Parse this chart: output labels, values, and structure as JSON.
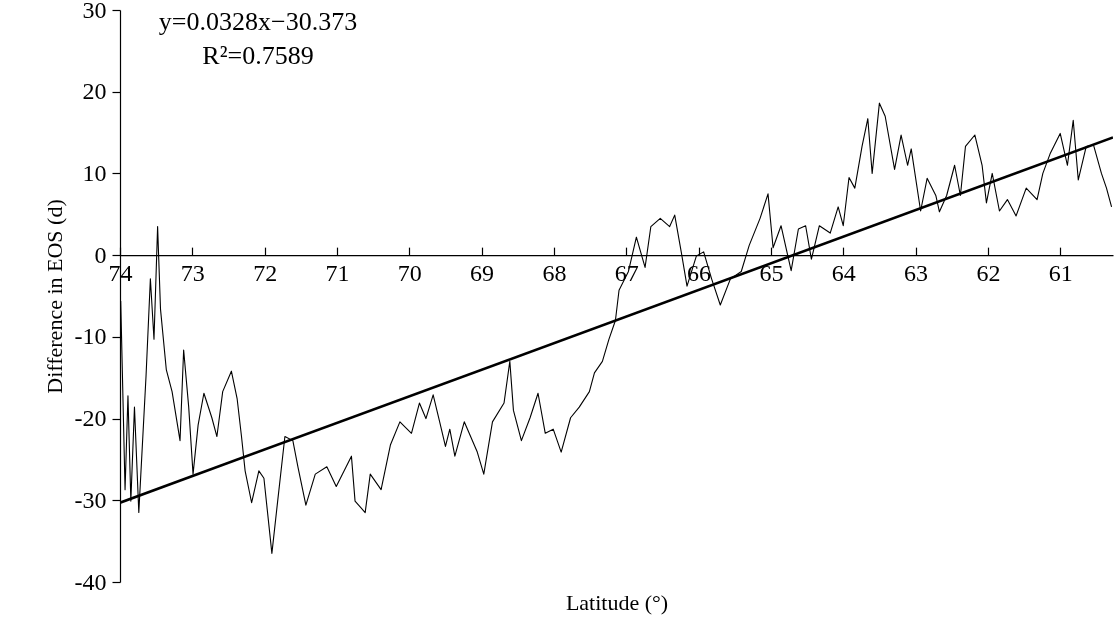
{
  "chart_data": {
    "type": "line",
    "xlabel": "Latitude (°)",
    "ylabel": "Difference in EOS (d)",
    "xlim": [
      74,
      60.27
    ],
    "xticks": [
      74,
      73,
      72,
      71,
      70,
      69,
      68,
      67,
      66,
      65,
      64,
      63,
      62,
      61
    ],
    "ylim": [
      -40,
      30
    ],
    "yticks": [
      -40,
      -30,
      -20,
      -10,
      0,
      10,
      20,
      30
    ],
    "annotations": [
      "y=0.0328x−30.373",
      "R²=0.7589"
    ],
    "series": [
      {
        "color": "#000000",
        "x": [
          73.99,
          73.93,
          73.89,
          73.85,
          73.8,
          73.74,
          73.64,
          73.58,
          73.53,
          73.48,
          73.44,
          73.36,
          73.28,
          73.17,
          73.12,
          73.05,
          72.99,
          72.92,
          72.84,
          72.73,
          72.66,
          72.58,
          72.46,
          72.38,
          72.32,
          72.27,
          72.18,
          72.08,
          72.01,
          71.9,
          71.82,
          71.72,
          71.61,
          71.54,
          71.43,
          71.3,
          71.14,
          71.01,
          70.8,
          70.75,
          70.61,
          70.54,
          70.39,
          70.26,
          70.13,
          69.97,
          69.86,
          69.77,
          69.67,
          69.58,
          69.5,
          69.44,
          69.37,
          69.24,
          69.06,
          68.97,
          68.85,
          68.69,
          68.61,
          68.56,
          68.45,
          68.33,
          68.22,
          68.12,
          68.01,
          67.9,
          67.77,
          67.65,
          67.51,
          67.44,
          67.33,
          67.24,
          67.15,
          67.1,
          66.97,
          66.86,
          66.74,
          66.66,
          66.53,
          66.4,
          66.33,
          66.24,
          66.16,
          66.03,
          65.93,
          65.82,
          65.7,
          65.56,
          65.41,
          65.3,
          65.15,
          65.04,
          64.97,
          64.86,
          64.72,
          64.62,
          64.52,
          64.44,
          64.33,
          64.18,
          64.07,
          64.0,
          63.92,
          63.84,
          63.74,
          63.66,
          63.6,
          63.5,
          63.42,
          63.29,
          63.2,
          63.11,
          63.06,
          62.93,
          62.84,
          62.72,
          62.67,
          62.57,
          62.46,
          62.38,
          62.31,
          62.18,
          62.08,
          62.02,
          61.94,
          61.84,
          61.73,
          61.61,
          61.47,
          61.32,
          61.24,
          61.14,
          61.0,
          60.9,
          60.82,
          60.75,
          60.64,
          60.54,
          60.43,
          60.36,
          60.29
        ],
        "values": [
          -5.6,
          -28.7,
          -17.2,
          -30.1,
          -18.6,
          -31.5,
          -14.8,
          -2.9,
          -10.3,
          3.5,
          -6.6,
          -14.0,
          -16.7,
          -22.7,
          -11.6,
          -18.6,
          -26.8,
          -20.8,
          -16.9,
          -19.9,
          -22.2,
          -16.7,
          -14.2,
          -17.6,
          -22.2,
          -26.4,
          -30.3,
          -26.4,
          -27.3,
          -36.5,
          -30.1,
          -22.2,
          -22.7,
          -25.9,
          -30.6,
          -26.8,
          -25.9,
          -28.3,
          -24.6,
          -30.1,
          -31.5,
          -26.8,
          -28.7,
          -23.2,
          -20.4,
          -21.8,
          -18.1,
          -20.0,
          -17.1,
          -20.4,
          -23.4,
          -21.3,
          -24.6,
          -20.4,
          -24.1,
          -26.8,
          -20.4,
          -18.1,
          -13.0,
          -19.0,
          -22.7,
          -19.9,
          -16.9,
          -21.8,
          -21.3,
          -24.1,
          -19.9,
          -18.6,
          -16.7,
          -14.4,
          -13.0,
          -10.3,
          -8.0,
          -4.3,
          -2.0,
          2.2,
          -1.5,
          3.5,
          4.5,
          3.5,
          4.9,
          0.4,
          -3.8,
          -0.1,
          0.4,
          -2.9,
          -6.1,
          -2.9,
          -2.0,
          1.2,
          4.5,
          7.5,
          0.9,
          3.6,
          -1.9,
          3.2,
          3.6,
          -0.5,
          3.6,
          2.7,
          5.9,
          3.6,
          9.5,
          8.2,
          13.3,
          16.7,
          10.0,
          18.6,
          17.0,
          10.5,
          14.7,
          11.0,
          13.0,
          5.4,
          9.4,
          7.3,
          5.3,
          7.3,
          11.0,
          7.3,
          13.3,
          14.7,
          11.0,
          6.4,
          10.0,
          5.4,
          6.8,
          4.8,
          8.2,
          6.8,
          10.0,
          12.4,
          14.9,
          11.0,
          16.5,
          9.2,
          13.3,
          13.5,
          10.0,
          8.2,
          5.9
        ]
      },
      {
        "type": "line",
        "color": "#000000",
        "x": [
          74,
          60.27
        ],
        "values": [
          -30.3,
          14.4
        ]
      }
    ]
  }
}
